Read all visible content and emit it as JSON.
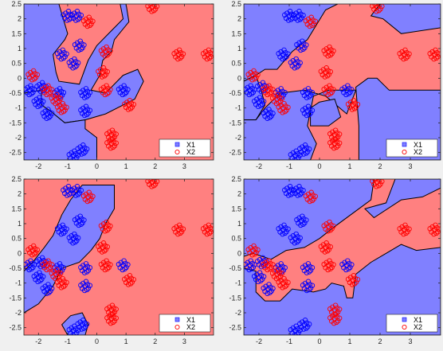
{
  "figure": {
    "background": "#f0f0f0"
  },
  "colors": {
    "region_blue": "#8080ff",
    "region_red": "#ff8080",
    "x1": "#0000ff",
    "x2": "#ff0000",
    "boundary": "#000000"
  },
  "chart_data": [
    {
      "type": "scatter",
      "xlim": [
        -2.5,
        4
      ],
      "ylim": [
        -2.75,
        2.5
      ],
      "x_ticks": [
        -2,
        -1,
        0,
        1,
        2,
        3
      ],
      "y_ticks": [
        -2.5,
        -2,
        -1.5,
        -1,
        -0.5,
        0,
        0.5,
        1,
        1.5,
        2,
        2.5
      ],
      "legend": {
        "position": "bottom-right",
        "entries": [
          "X1",
          "X2"
        ]
      },
      "series": [
        {
          "name": "X1",
          "points": [
            [
              -1,
              2.1
            ],
            [
              -0.7,
              2.1
            ],
            [
              -0.6,
              1.1
            ],
            [
              -1.2,
              0.8
            ],
            [
              -0.8,
              0.5
            ],
            [
              -1.3,
              -0.5
            ],
            [
              -1.9,
              -0.3
            ],
            [
              -2.3,
              -0.4
            ],
            [
              -1.7,
              -1.2
            ],
            [
              -0.4,
              -0.5
            ],
            [
              -0.4,
              -1.1
            ],
            [
              0.9,
              -0.4
            ],
            [
              -0.5,
              -2.4
            ],
            [
              -0.8,
              -2.6
            ],
            [
              -2.0,
              -0.8
            ]
          ]
        },
        {
          "name": "X2",
          "points": [
            [
              -0.3,
              1.9
            ],
            [
              0.3,
              0.9
            ],
            [
              0.2,
              0.2
            ],
            [
              0.3,
              -0.4
            ],
            [
              1.1,
              -0.9
            ],
            [
              -1.4,
              -0.7
            ],
            [
              -1.7,
              -0.4
            ],
            [
              1.9,
              2.4
            ],
            [
              2.8,
              0.8
            ],
            [
              3.8,
              0.8
            ],
            [
              0.5,
              -2.2
            ],
            [
              -2.2,
              0.1
            ],
            [
              -1.2,
              -1.0
            ],
            [
              0.5,
              -1.9
            ]
          ]
        }
      ]
    },
    {
      "type": "scatter",
      "xlim": [
        -2.5,
        4
      ],
      "ylim": [
        -2.75,
        2.5
      ],
      "x_ticks": [
        -2,
        -1,
        0,
        1,
        2,
        3
      ],
      "y_ticks": [
        -2.5,
        -2,
        -1.5,
        -1,
        -0.5,
        0,
        0.5,
        1,
        1.5,
        2,
        2.5
      ],
      "legend": {
        "position": "bottom-right",
        "entries": [
          "X1",
          "X2"
        ]
      },
      "series": [
        {
          "name": "X1",
          "points": [
            [
              -1,
              2.1
            ],
            [
              -0.7,
              2.1
            ],
            [
              -0.6,
              1.1
            ],
            [
              -1.2,
              0.8
            ],
            [
              -0.8,
              0.5
            ],
            [
              -1.3,
              -0.5
            ],
            [
              -1.9,
              -0.3
            ],
            [
              -2.3,
              -0.4
            ],
            [
              -1.7,
              -1.2
            ],
            [
              -0.4,
              -0.5
            ],
            [
              -0.4,
              -1.1
            ],
            [
              0.9,
              -0.4
            ],
            [
              -0.5,
              -2.4
            ],
            [
              -0.8,
              -2.6
            ],
            [
              -2.0,
              -0.8
            ]
          ]
        },
        {
          "name": "X2",
          "points": [
            [
              -0.3,
              1.9
            ],
            [
              0.3,
              0.9
            ],
            [
              0.2,
              0.2
            ],
            [
              0.3,
              -0.4
            ],
            [
              1.1,
              -0.9
            ],
            [
              -1.4,
              -0.7
            ],
            [
              -1.7,
              -0.4
            ],
            [
              1.9,
              2.4
            ],
            [
              2.8,
              0.8
            ],
            [
              3.8,
              0.8
            ],
            [
              0.5,
              -2.2
            ],
            [
              -2.2,
              0.1
            ],
            [
              -1.2,
              -1.0
            ],
            [
              0.5,
              -1.9
            ]
          ]
        }
      ]
    },
    {
      "type": "scatter",
      "xlim": [
        -2.5,
        4
      ],
      "ylim": [
        -2.75,
        2.5
      ],
      "x_ticks": [
        -2,
        -1,
        0,
        1,
        2,
        3
      ],
      "y_ticks": [
        -2.5,
        -2,
        -1.5,
        -1,
        -0.5,
        0,
        0.5,
        1,
        1.5,
        2,
        2.5
      ],
      "legend": {
        "position": "bottom-right",
        "entries": [
          "X1",
          "X2"
        ]
      },
      "series": [
        {
          "name": "X1",
          "points": [
            [
              -1,
              2.1
            ],
            [
              -0.7,
              2.1
            ],
            [
              -0.6,
              1.1
            ],
            [
              -1.2,
              0.8
            ],
            [
              -0.8,
              0.5
            ],
            [
              -1.3,
              -0.5
            ],
            [
              -1.9,
              -0.3
            ],
            [
              -2.3,
              -0.4
            ],
            [
              -1.7,
              -1.2
            ],
            [
              -0.4,
              -0.5
            ],
            [
              -0.4,
              -1.1
            ],
            [
              0.9,
              -0.4
            ],
            [
              -0.5,
              -2.4
            ],
            [
              -0.8,
              -2.6
            ],
            [
              -2.0,
              -0.8
            ]
          ]
        },
        {
          "name": "X2",
          "points": [
            [
              -0.3,
              1.9
            ],
            [
              0.3,
              0.9
            ],
            [
              0.2,
              0.2
            ],
            [
              0.3,
              -0.4
            ],
            [
              1.1,
              -0.9
            ],
            [
              -1.4,
              -0.7
            ],
            [
              -1.7,
              -0.4
            ],
            [
              1.9,
              2.4
            ],
            [
              2.8,
              0.8
            ],
            [
              3.8,
              0.8
            ],
            [
              0.5,
              -2.2
            ],
            [
              -2.2,
              0.1
            ],
            [
              -1.2,
              -1.0
            ],
            [
              0.5,
              -1.9
            ]
          ]
        }
      ]
    },
    {
      "type": "scatter",
      "xlim": [
        -2.5,
        4
      ],
      "ylim": [
        -2.75,
        2.5
      ],
      "x_ticks": [
        -2,
        -1,
        0,
        1,
        2,
        3
      ],
      "y_ticks": [
        -2.5,
        -2,
        -1.5,
        -1,
        -0.5,
        0,
        0.5,
        1,
        1.5,
        2,
        2.5
      ],
      "legend": {
        "position": "bottom-right",
        "entries": [
          "X1",
          "X2"
        ]
      },
      "series": [
        {
          "name": "X1",
          "points": [
            [
              -1,
              2.1
            ],
            [
              -0.7,
              2.1
            ],
            [
              -0.6,
              1.1
            ],
            [
              -1.2,
              0.8
            ],
            [
              -0.8,
              0.5
            ],
            [
              -1.3,
              -0.5
            ],
            [
              -1.9,
              -0.3
            ],
            [
              -2.3,
              -0.4
            ],
            [
              -1.7,
              -1.2
            ],
            [
              -0.4,
              -0.5
            ],
            [
              -0.4,
              -1.1
            ],
            [
              0.9,
              -0.4
            ],
            [
              -0.5,
              -2.4
            ],
            [
              -0.8,
              -2.6
            ],
            [
              -2.0,
              -0.8
            ]
          ]
        },
        {
          "name": "X2",
          "points": [
            [
              -0.3,
              1.9
            ],
            [
              0.3,
              0.9
            ],
            [
              0.2,
              0.2
            ],
            [
              0.3,
              -0.4
            ],
            [
              1.1,
              -0.9
            ],
            [
              -1.4,
              -0.7
            ],
            [
              -1.7,
              -0.4
            ],
            [
              1.9,
              2.4
            ],
            [
              2.8,
              0.8
            ],
            [
              3.8,
              0.8
            ],
            [
              0.5,
              -2.2
            ],
            [
              -2.2,
              0.1
            ],
            [
              -1.2,
              -1.0
            ],
            [
              0.5,
              -1.9
            ]
          ]
        }
      ]
    }
  ]
}
